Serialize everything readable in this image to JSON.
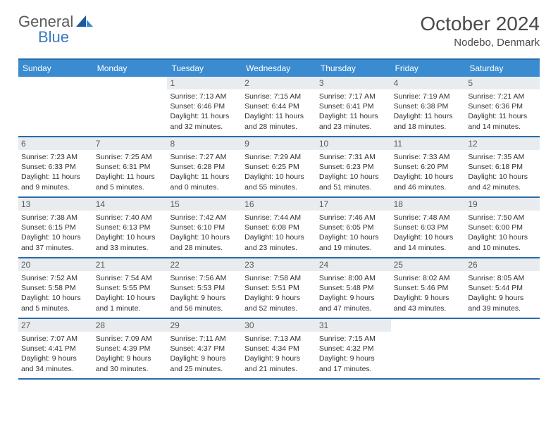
{
  "logo": {
    "part1": "General",
    "part2": "Blue"
  },
  "title": "October 2024",
  "location": "Nodebo, Denmark",
  "colors": {
    "headerBar": "#3a8bd0",
    "border": "#2a6aa8",
    "dayNumBg": "#e9ecef",
    "text": "#333333",
    "logoAccent": "#3a7bbf"
  },
  "dow": [
    "Sunday",
    "Monday",
    "Tuesday",
    "Wednesday",
    "Thursday",
    "Friday",
    "Saturday"
  ],
  "weeks": [
    [
      null,
      null,
      {
        "n": "1",
        "sr": "7:13 AM",
        "ss": "6:46 PM",
        "dl": "11 hours and 32 minutes."
      },
      {
        "n": "2",
        "sr": "7:15 AM",
        "ss": "6:44 PM",
        "dl": "11 hours and 28 minutes."
      },
      {
        "n": "3",
        "sr": "7:17 AM",
        "ss": "6:41 PM",
        "dl": "11 hours and 23 minutes."
      },
      {
        "n": "4",
        "sr": "7:19 AM",
        "ss": "6:38 PM",
        "dl": "11 hours and 18 minutes."
      },
      {
        "n": "5",
        "sr": "7:21 AM",
        "ss": "6:36 PM",
        "dl": "11 hours and 14 minutes."
      }
    ],
    [
      {
        "n": "6",
        "sr": "7:23 AM",
        "ss": "6:33 PM",
        "dl": "11 hours and 9 minutes."
      },
      {
        "n": "7",
        "sr": "7:25 AM",
        "ss": "6:31 PM",
        "dl": "11 hours and 5 minutes."
      },
      {
        "n": "8",
        "sr": "7:27 AM",
        "ss": "6:28 PM",
        "dl": "11 hours and 0 minutes."
      },
      {
        "n": "9",
        "sr": "7:29 AM",
        "ss": "6:25 PM",
        "dl": "10 hours and 55 minutes."
      },
      {
        "n": "10",
        "sr": "7:31 AM",
        "ss": "6:23 PM",
        "dl": "10 hours and 51 minutes."
      },
      {
        "n": "11",
        "sr": "7:33 AM",
        "ss": "6:20 PM",
        "dl": "10 hours and 46 minutes."
      },
      {
        "n": "12",
        "sr": "7:35 AM",
        "ss": "6:18 PM",
        "dl": "10 hours and 42 minutes."
      }
    ],
    [
      {
        "n": "13",
        "sr": "7:38 AM",
        "ss": "6:15 PM",
        "dl": "10 hours and 37 minutes."
      },
      {
        "n": "14",
        "sr": "7:40 AM",
        "ss": "6:13 PM",
        "dl": "10 hours and 33 minutes."
      },
      {
        "n": "15",
        "sr": "7:42 AM",
        "ss": "6:10 PM",
        "dl": "10 hours and 28 minutes."
      },
      {
        "n": "16",
        "sr": "7:44 AM",
        "ss": "6:08 PM",
        "dl": "10 hours and 23 minutes."
      },
      {
        "n": "17",
        "sr": "7:46 AM",
        "ss": "6:05 PM",
        "dl": "10 hours and 19 minutes."
      },
      {
        "n": "18",
        "sr": "7:48 AM",
        "ss": "6:03 PM",
        "dl": "10 hours and 14 minutes."
      },
      {
        "n": "19",
        "sr": "7:50 AM",
        "ss": "6:00 PM",
        "dl": "10 hours and 10 minutes."
      }
    ],
    [
      {
        "n": "20",
        "sr": "7:52 AM",
        "ss": "5:58 PM",
        "dl": "10 hours and 5 minutes."
      },
      {
        "n": "21",
        "sr": "7:54 AM",
        "ss": "5:55 PM",
        "dl": "10 hours and 1 minute."
      },
      {
        "n": "22",
        "sr": "7:56 AM",
        "ss": "5:53 PM",
        "dl": "9 hours and 56 minutes."
      },
      {
        "n": "23",
        "sr": "7:58 AM",
        "ss": "5:51 PM",
        "dl": "9 hours and 52 minutes."
      },
      {
        "n": "24",
        "sr": "8:00 AM",
        "ss": "5:48 PM",
        "dl": "9 hours and 47 minutes."
      },
      {
        "n": "25",
        "sr": "8:02 AM",
        "ss": "5:46 PM",
        "dl": "9 hours and 43 minutes."
      },
      {
        "n": "26",
        "sr": "8:05 AM",
        "ss": "5:44 PM",
        "dl": "9 hours and 39 minutes."
      }
    ],
    [
      {
        "n": "27",
        "sr": "7:07 AM",
        "ss": "4:41 PM",
        "dl": "9 hours and 34 minutes."
      },
      {
        "n": "28",
        "sr": "7:09 AM",
        "ss": "4:39 PM",
        "dl": "9 hours and 30 minutes."
      },
      {
        "n": "29",
        "sr": "7:11 AM",
        "ss": "4:37 PM",
        "dl": "9 hours and 25 minutes."
      },
      {
        "n": "30",
        "sr": "7:13 AM",
        "ss": "4:34 PM",
        "dl": "9 hours and 21 minutes."
      },
      {
        "n": "31",
        "sr": "7:15 AM",
        "ss": "4:32 PM",
        "dl": "9 hours and 17 minutes."
      },
      null,
      null
    ]
  ],
  "labels": {
    "sunrise": "Sunrise:",
    "sunset": "Sunset:",
    "daylight": "Daylight:"
  }
}
